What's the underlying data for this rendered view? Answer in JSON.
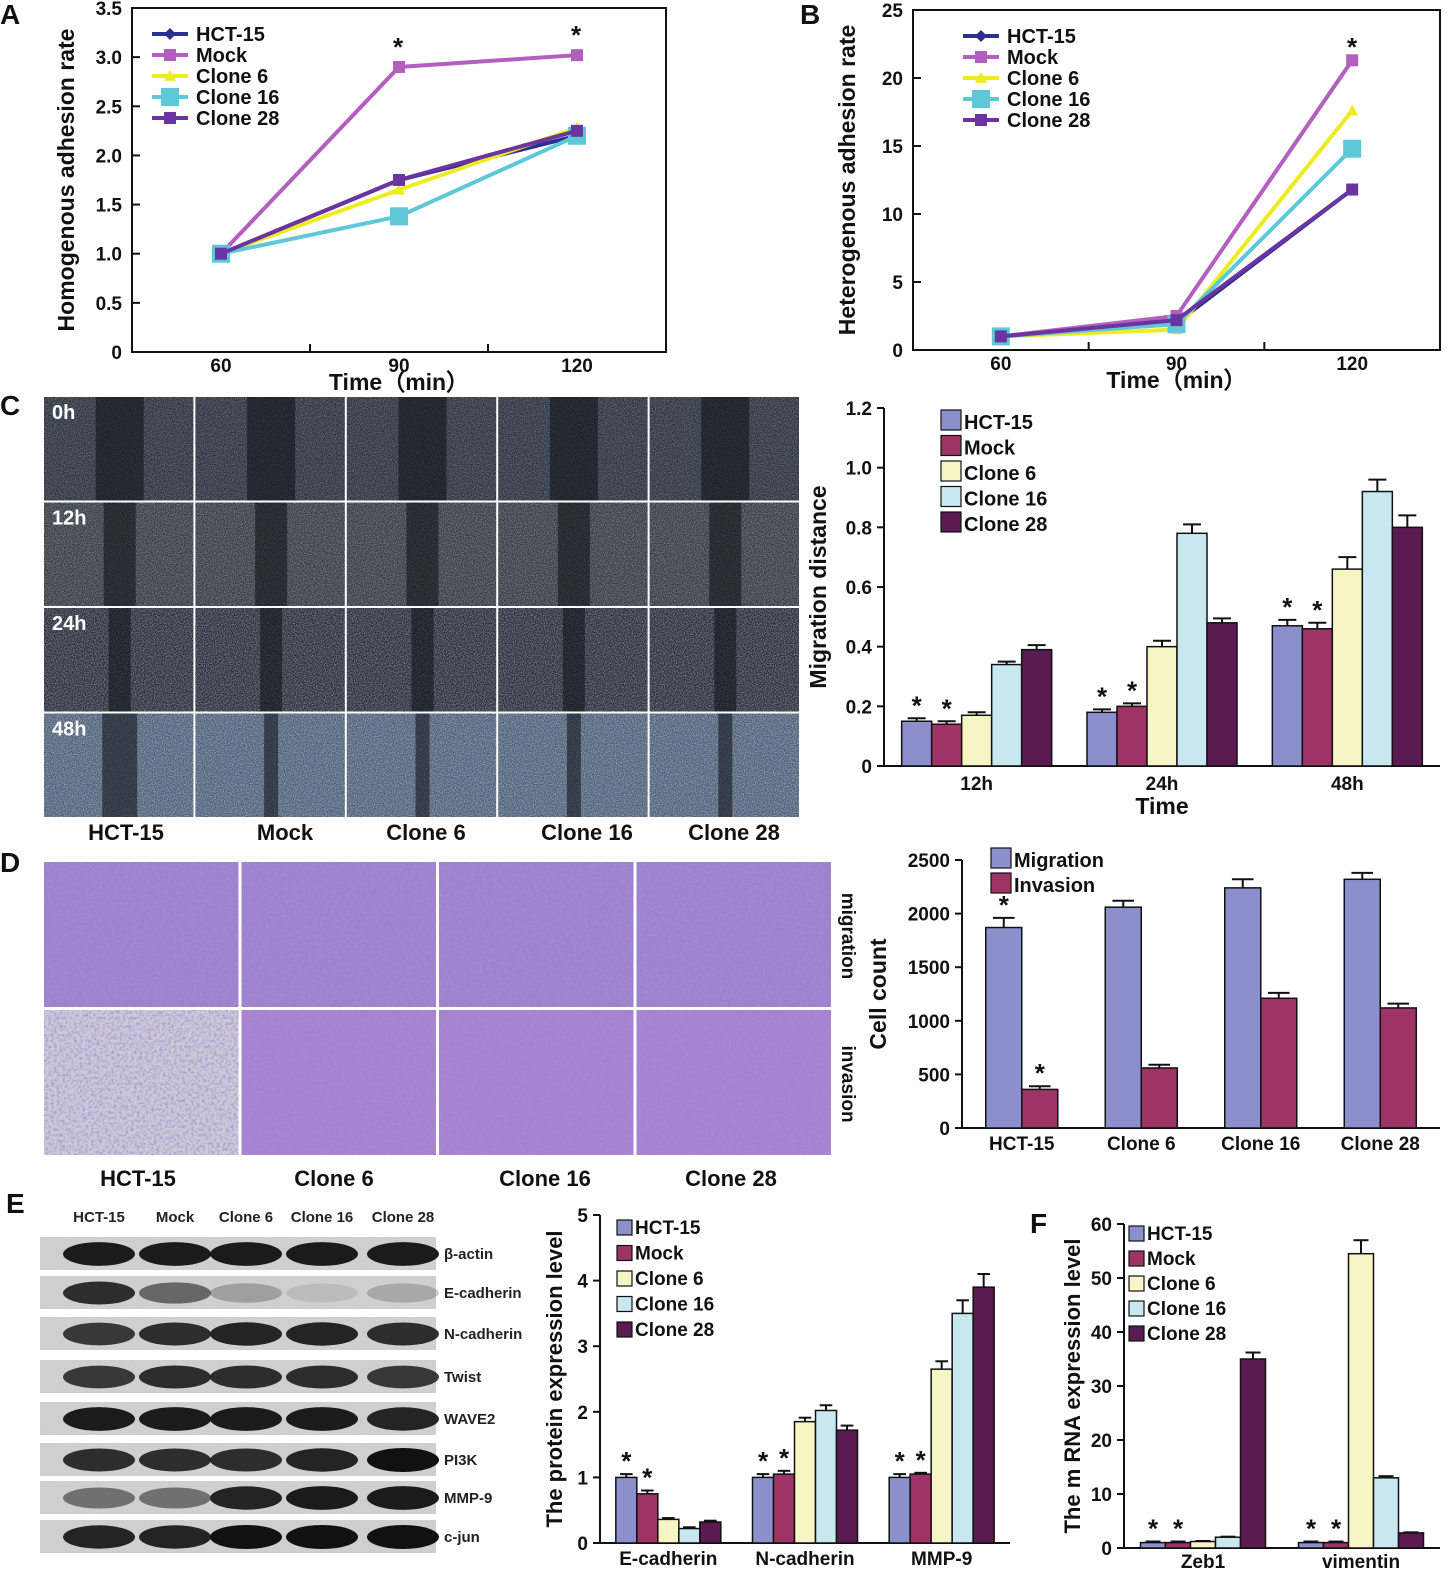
{
  "panels": {
    "A": "A",
    "B": "B",
    "C": "C",
    "D": "D",
    "E": "E",
    "F": "F"
  },
  "colors": {
    "HCT-15": "#2b2f8f",
    "Mock": "#b25fbf",
    "Clone 6": "#ecec20",
    "Clone 16": "#5ec8d8",
    "Clone 28": "#6a35a0",
    "bar_hct": "#8b90cc",
    "bar_mock": "#9e3465",
    "bar_c6": "#f8f5c4",
    "bar_c16": "#c7e8ee",
    "bar_c28": "#5a1a52",
    "bar_migration": "#8b90cc",
    "bar_invasion": "#9e3465"
  },
  "scratch_images": {
    "rows": [
      "0h",
      "12h",
      "24h",
      "48h"
    ],
    "columns": [
      "HCT-15",
      "Mock",
      "Clone 6",
      "Clone 16",
      "Clone 28"
    ]
  },
  "transwell_images": {
    "rows": [
      "migration",
      "invasion"
    ],
    "columns": [
      "HCT-15",
      "Clone 6",
      "Clone 16",
      "Clone 28"
    ]
  },
  "western_blot": {
    "columns": [
      "HCT-15",
      "Mock",
      "Clone 6",
      "Clone 16",
      "Clone 28"
    ],
    "bands": [
      "β-actin",
      "E-cadherin",
      "N-cadherin",
      "Twist",
      "WAVE2",
      "PI3K",
      "MMP-9",
      "c-jun"
    ],
    "intensity": [
      [
        0.95,
        0.95,
        0.95,
        0.95,
        0.95
      ],
      [
        0.85,
        0.55,
        0.25,
        0.1,
        0.2
      ],
      [
        0.8,
        0.85,
        0.9,
        0.9,
        0.85
      ],
      [
        0.8,
        0.85,
        0.85,
        0.85,
        0.8
      ],
      [
        0.95,
        0.95,
        0.95,
        0.95,
        0.9
      ],
      [
        0.85,
        0.85,
        0.85,
        0.9,
        1.0
      ],
      [
        0.5,
        0.5,
        0.9,
        0.95,
        0.95
      ],
      [
        0.9,
        0.9,
        1.0,
        1.0,
        1.0
      ]
    ]
  },
  "chart_data": [
    {
      "id": "A",
      "type": "line",
      "x": [
        60,
        90,
        120
      ],
      "xlabel": "Time（min）",
      "ylabel": "Homogenous adhesion rate",
      "ylim": [
        0,
        3.5
      ],
      "yticks": [
        "0",
        "0.5",
        "1.0",
        "1.5",
        "2.0",
        "2.5",
        "3.0",
        "3.5"
      ],
      "xticks": [
        "60",
        "90",
        "120"
      ],
      "series": [
        {
          "name": "HCT-15",
          "values": [
            1.0,
            1.75,
            2.2
          ]
        },
        {
          "name": "Mock",
          "values": [
            1.0,
            2.9,
            3.02
          ]
        },
        {
          "name": "Clone 6",
          "values": [
            1.0,
            1.65,
            2.28
          ]
        },
        {
          "name": "Clone 16",
          "values": [
            1.0,
            1.38,
            2.2
          ]
        },
        {
          "name": "Clone 28",
          "values": [
            1.0,
            1.75,
            2.25
          ]
        }
      ],
      "annotations": [
        "*",
        "*"
      ]
    },
    {
      "id": "B",
      "type": "line",
      "x": [
        60,
        90,
        120
      ],
      "xlabel": "Time（min）",
      "ylabel": "Heterogenous adhesion rate",
      "ylim": [
        0,
        25
      ],
      "yticks": [
        "0",
        "5",
        "10",
        "15",
        "20",
        "25"
      ],
      "xticks": [
        "60",
        "90",
        "120"
      ],
      "series": [
        {
          "name": "HCT-15",
          "values": [
            1.0,
            2.0,
            11.8
          ]
        },
        {
          "name": "Mock",
          "values": [
            1.0,
            2.5,
            21.3
          ]
        },
        {
          "name": "Clone 6",
          "values": [
            1.0,
            1.5,
            17.6
          ]
        },
        {
          "name": "Clone 16",
          "values": [
            1.0,
            1.9,
            14.8
          ]
        },
        {
          "name": "Clone 28",
          "values": [
            1.0,
            2.2,
            11.8
          ]
        }
      ],
      "annotations": [
        "*"
      ]
    },
    {
      "id": "C",
      "type": "bar",
      "categories": [
        "12h",
        "24h",
        "48h"
      ],
      "xlabel": "Time",
      "ylabel": "Migration distance",
      "ylim": [
        0,
        1.2
      ],
      "yticks": [
        "0",
        "0.2",
        "0.4",
        "0.6",
        "0.8",
        "1.0",
        "1.2"
      ],
      "series": [
        {
          "name": "HCT-15",
          "values": [
            0.15,
            0.18,
            0.47
          ],
          "err": [
            0.01,
            0.01,
            0.02
          ],
          "star": [
            true,
            true,
            true
          ]
        },
        {
          "name": "Mock",
          "values": [
            0.14,
            0.2,
            0.46
          ],
          "err": [
            0.01,
            0.01,
            0.02
          ],
          "star": [
            true,
            true,
            true
          ]
        },
        {
          "name": "Clone 6",
          "values": [
            0.17,
            0.4,
            0.66
          ],
          "err": [
            0.01,
            0.02,
            0.04
          ],
          "star": [
            false,
            false,
            false
          ]
        },
        {
          "name": "Clone 16",
          "values": [
            0.34,
            0.78,
            0.92
          ],
          "err": [
            0.01,
            0.03,
            0.04
          ],
          "star": [
            false,
            false,
            false
          ]
        },
        {
          "name": "Clone 28",
          "values": [
            0.39,
            0.48,
            0.8
          ],
          "err": [
            0.015,
            0.015,
            0.04
          ],
          "star": [
            false,
            false,
            false
          ]
        }
      ]
    },
    {
      "id": "D",
      "type": "bar",
      "categories": [
        "HCT-15",
        "Clone 6",
        "Clone 16",
        "Clone 28"
      ],
      "ylabel": "Cell count",
      "ylim": [
        0,
        2500
      ],
      "yticks": [
        "0",
        "500",
        "1000",
        "1500",
        "2000",
        "2500"
      ],
      "series": [
        {
          "name": "Migration",
          "values": [
            1870,
            2060,
            2240,
            2320
          ],
          "err": [
            90,
            60,
            80,
            60
          ],
          "star": [
            true,
            false,
            false,
            false
          ]
        },
        {
          "name": "Invasion",
          "values": [
            360,
            560,
            1210,
            1120
          ],
          "err": [
            30,
            30,
            50,
            40
          ],
          "star": [
            true,
            false,
            false,
            false
          ]
        }
      ]
    },
    {
      "id": "E",
      "type": "bar",
      "categories": [
        "E-cadherin",
        "N-cadherin",
        "MMP-9"
      ],
      "ylabel": "The protein expression level",
      "ylim": [
        0,
        5
      ],
      "yticks": [
        "0",
        "1",
        "2",
        "3",
        "4",
        "5"
      ],
      "series": [
        {
          "name": "HCT-15",
          "values": [
            1.0,
            1.0,
            1.0
          ],
          "err": [
            0.05,
            0.05,
            0.05
          ],
          "star": [
            true,
            true,
            true
          ]
        },
        {
          "name": "Mock",
          "values": [
            0.75,
            1.05,
            1.05
          ],
          "err": [
            0.05,
            0.05,
            0.02
          ],
          "star": [
            true,
            true,
            true
          ]
        },
        {
          "name": "Clone 6",
          "values": [
            0.36,
            1.85,
            2.65
          ],
          "err": [
            0.02,
            0.06,
            0.12
          ],
          "star": [
            false,
            false,
            false
          ]
        },
        {
          "name": "Clone 16",
          "values": [
            0.22,
            2.02,
            3.5
          ],
          "err": [
            0.02,
            0.08,
            0.2
          ],
          "star": [
            false,
            false,
            false
          ]
        },
        {
          "name": "Clone 28",
          "values": [
            0.32,
            1.72,
            3.9
          ],
          "err": [
            0.02,
            0.07,
            0.2
          ],
          "star": [
            false,
            false,
            false
          ]
        }
      ]
    },
    {
      "id": "F",
      "type": "bar",
      "categories": [
        "Zeb1",
        "vimentin"
      ],
      "ylabel": "The m RNA expression level",
      "ylim": [
        0,
        60
      ],
      "yticks": [
        "0",
        "10",
        "20",
        "30",
        "40",
        "50",
        "60"
      ],
      "series": [
        {
          "name": "HCT-15",
          "values": [
            1.0,
            1.0
          ],
          "err": [
            0.2,
            0.2
          ],
          "star": [
            true,
            true
          ]
        },
        {
          "name": "Mock",
          "values": [
            1.0,
            1.0
          ],
          "err": [
            0.2,
            0.2
          ],
          "star": [
            true,
            true
          ]
        },
        {
          "name": "Clone 6",
          "values": [
            1.2,
            54.5
          ],
          "err": [
            0.1,
            2.5
          ],
          "star": [
            false,
            false
          ]
        },
        {
          "name": "Clone 16",
          "values": [
            2.0,
            13.0
          ],
          "err": [
            0.1,
            0.3
          ],
          "star": [
            false,
            false
          ]
        },
        {
          "name": "Clone 28",
          "values": [
            35.0,
            2.8
          ],
          "err": [
            1.2,
            0.1
          ],
          "star": [
            false,
            false
          ]
        }
      ]
    }
  ]
}
